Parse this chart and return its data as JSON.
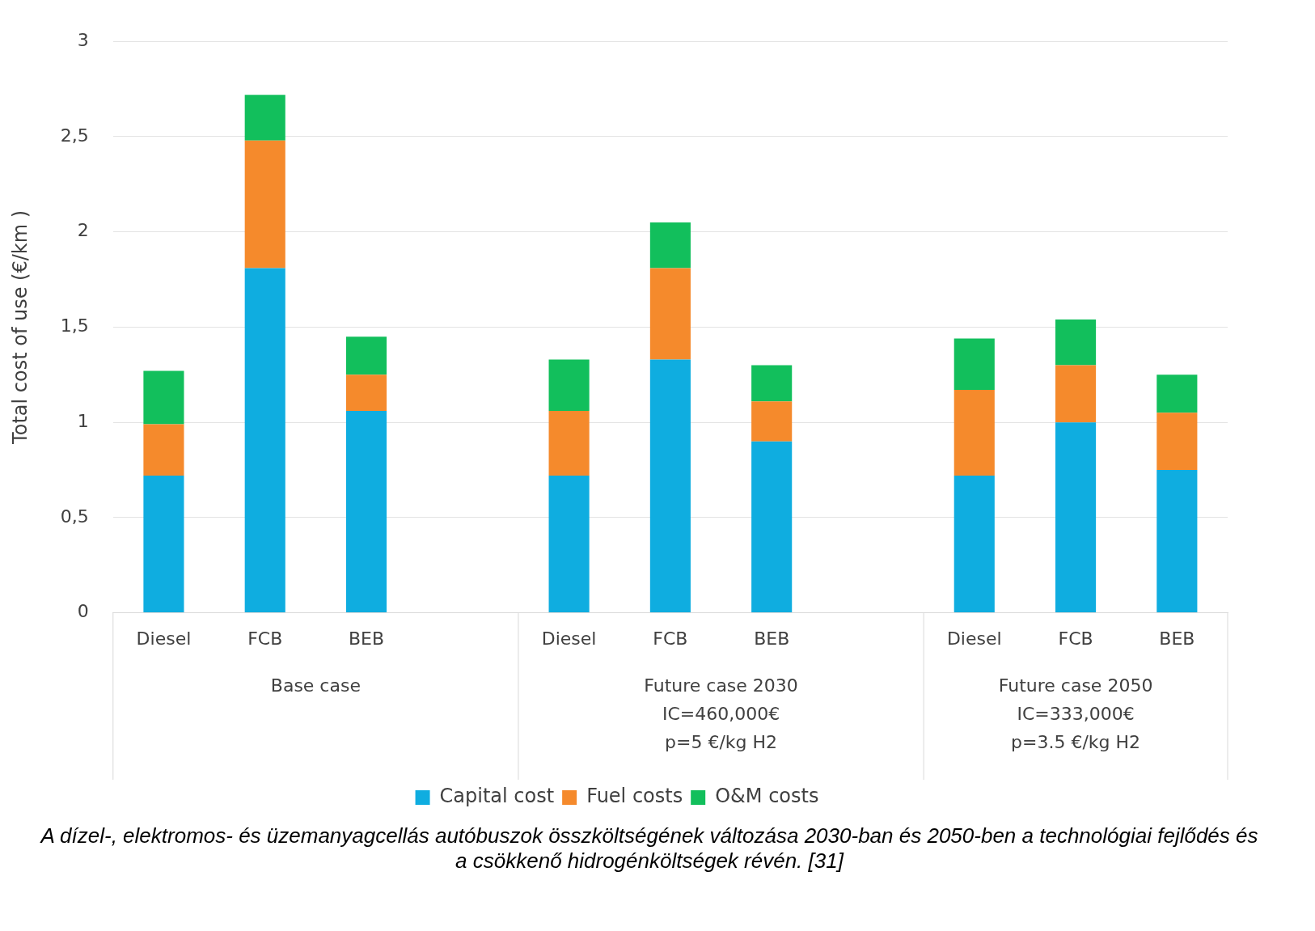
{
  "chart_data": {
    "type": "bar",
    "stacked": true,
    "ylabel": "Total cost of use (€/km )",
    "categories": [
      "Diesel",
      "FCB",
      "BEB",
      null,
      "Diesel",
      "FCB",
      "BEB",
      null,
      "Diesel",
      "FCB",
      "BEB"
    ],
    "series": [
      {
        "name": "Capital cost",
        "color": "#0fade0",
        "values": [
          0.72,
          1.81,
          1.06,
          null,
          0.72,
          1.33,
          0.9,
          null,
          0.72,
          1.0,
          0.75
        ]
      },
      {
        "name": "Fuel costs",
        "color": "#f58a2c",
        "values": [
          0.27,
          0.67,
          0.19,
          null,
          0.34,
          0.48,
          0.21,
          null,
          0.45,
          0.3,
          0.3
        ]
      },
      {
        "name": "O&M costs",
        "color": "#12bf5c",
        "values": [
          0.28,
          0.24,
          0.2,
          null,
          0.27,
          0.24,
          0.19,
          null,
          0.27,
          0.24,
          0.2
        ]
      }
    ],
    "ylim": [
      0,
      3
    ],
    "yticks": [
      0,
      {
        "value": 0.5,
        "label": "0,5"
      },
      1,
      {
        "value": 1.5,
        "label": "1,5"
      },
      2,
      {
        "value": 2.5,
        "label": "2,5"
      },
      3
    ],
    "grid": "y",
    "legend": "bottom",
    "annotations": [
      "Base case",
      "Future case 2030\nIC=460,000€\np=5 €/kg H2",
      "Future case 2050\nIC=333,000€\np=3.5 €/kg H2",
      "A dízel-, elektromos- és üzemanyagcellás autóbuszok összköltségének változása 2030-ban és 2050-ben a technológiai fejlődés és a csökkenő hidrogénköltségek révén. [31]"
    ]
  }
}
